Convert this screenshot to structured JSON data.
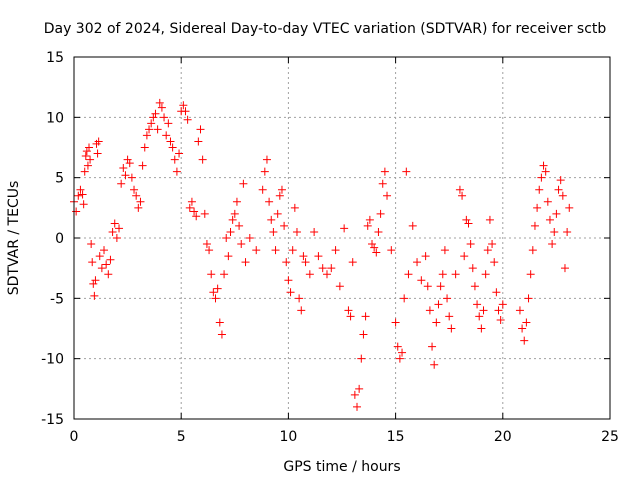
{
  "chart_data": {
    "type": "scatter",
    "title": "Day 302 of 2024, Sidereal Day-to-day VTEC variation (SDTVAR) for receiver sctb",
    "xlabel": "GPS time / hours",
    "ylabel": "SDTVAR / TECUs",
    "xlim": [
      0,
      25
    ],
    "ylim": [
      -15,
      15
    ],
    "xticks": [
      0,
      5,
      10,
      15,
      20,
      25
    ],
    "yticks": [
      -15,
      -10,
      -5,
      0,
      5,
      10,
      15
    ],
    "grid": true,
    "marker": "+",
    "color": "#ff0000",
    "series": [
      {
        "name": "SDTVAR",
        "points": [
          [
            0.0,
            3.0
          ],
          [
            0.1,
            2.2
          ],
          [
            0.2,
            3.5
          ],
          [
            0.3,
            4.0
          ],
          [
            0.4,
            3.6
          ],
          [
            0.45,
            2.8
          ],
          [
            0.5,
            5.5
          ],
          [
            0.55,
            6.8
          ],
          [
            0.6,
            7.2
          ],
          [
            0.65,
            6.0
          ],
          [
            0.7,
            7.5
          ],
          [
            0.75,
            6.5
          ],
          [
            0.8,
            -0.5
          ],
          [
            0.85,
            -2.0
          ],
          [
            0.9,
            -3.8
          ],
          [
            0.95,
            -4.8
          ],
          [
            1.0,
            -3.5
          ],
          [
            1.05,
            7.8
          ],
          [
            1.1,
            7.0
          ],
          [
            1.15,
            8.0
          ],
          [
            1.2,
            -1.5
          ],
          [
            1.3,
            -2.5
          ],
          [
            1.4,
            -1.0
          ],
          [
            1.5,
            -2.2
          ],
          [
            1.6,
            -3.0
          ],
          [
            1.7,
            -1.8
          ],
          [
            1.8,
            0.5
          ],
          [
            1.9,
            1.2
          ],
          [
            2.0,
            0.0
          ],
          [
            2.1,
            0.8
          ],
          [
            2.2,
            4.5
          ],
          [
            2.3,
            5.8
          ],
          [
            2.4,
            5.2
          ],
          [
            2.5,
            6.5
          ],
          [
            2.6,
            6.2
          ],
          [
            2.7,
            5.0
          ],
          [
            2.8,
            4.0
          ],
          [
            2.9,
            3.5
          ],
          [
            3.0,
            2.5
          ],
          [
            3.1,
            3.0
          ],
          [
            3.2,
            6.0
          ],
          [
            3.3,
            7.5
          ],
          [
            3.4,
            8.5
          ],
          [
            3.5,
            9.0
          ],
          [
            3.6,
            9.5
          ],
          [
            3.7,
            10.0
          ],
          [
            3.8,
            10.3
          ],
          [
            3.9,
            9.0
          ],
          [
            4.0,
            11.2
          ],
          [
            4.1,
            10.8
          ],
          [
            4.2,
            10.0
          ],
          [
            4.3,
            8.5
          ],
          [
            4.4,
            9.5
          ],
          [
            4.5,
            8.0
          ],
          [
            4.6,
            7.5
          ],
          [
            4.7,
            6.5
          ],
          [
            4.8,
            5.5
          ],
          [
            4.9,
            7.0
          ],
          [
            5.0,
            10.5
          ],
          [
            5.1,
            11.0
          ],
          [
            5.2,
            10.5
          ],
          [
            5.3,
            9.8
          ],
          [
            5.4,
            2.5
          ],
          [
            5.5,
            3.0
          ],
          [
            5.6,
            2.2
          ],
          [
            5.7,
            1.8
          ],
          [
            5.8,
            8.0
          ],
          [
            5.9,
            9.0
          ],
          [
            6.0,
            6.5
          ],
          [
            6.1,
            2.0
          ],
          [
            6.2,
            -0.5
          ],
          [
            6.3,
            -1.0
          ],
          [
            6.4,
            -3.0
          ],
          [
            6.5,
            -4.5
          ],
          [
            6.6,
            -5.0
          ],
          [
            6.7,
            -4.2
          ],
          [
            6.8,
            -7.0
          ],
          [
            6.9,
            -8.0
          ],
          [
            7.0,
            -3.0
          ],
          [
            7.1,
            0.0
          ],
          [
            7.2,
            -1.5
          ],
          [
            7.3,
            0.5
          ],
          [
            7.4,
            1.5
          ],
          [
            7.5,
            2.0
          ],
          [
            7.6,
            3.0
          ],
          [
            7.7,
            1.0
          ],
          [
            7.8,
            -0.5
          ],
          [
            7.9,
            4.5
          ],
          [
            8.0,
            -2.0
          ],
          [
            8.2,
            0.0
          ],
          [
            8.5,
            -1.0
          ],
          [
            8.8,
            4.0
          ],
          [
            8.9,
            5.5
          ],
          [
            9.0,
            6.5
          ],
          [
            9.1,
            3.0
          ],
          [
            9.2,
            1.5
          ],
          [
            9.3,
            0.5
          ],
          [
            9.4,
            -1.0
          ],
          [
            9.5,
            2.0
          ],
          [
            9.6,
            3.5
          ],
          [
            9.7,
            4.0
          ],
          [
            9.8,
            1.0
          ],
          [
            9.9,
            -2.0
          ],
          [
            10.0,
            -3.5
          ],
          [
            10.1,
            -4.5
          ],
          [
            10.2,
            -1.0
          ],
          [
            10.3,
            2.5
          ],
          [
            10.4,
            0.5
          ],
          [
            10.5,
            -5.0
          ],
          [
            10.6,
            -6.0
          ],
          [
            10.7,
            -1.5
          ],
          [
            10.8,
            -2.0
          ],
          [
            11.0,
            -3.0
          ],
          [
            11.2,
            0.5
          ],
          [
            11.4,
            -1.5
          ],
          [
            11.6,
            -2.5
          ],
          [
            11.8,
            -3.0
          ],
          [
            12.0,
            -2.5
          ],
          [
            12.2,
            -1.0
          ],
          [
            12.4,
            -4.0
          ],
          [
            12.6,
            0.8
          ],
          [
            12.8,
            -6.0
          ],
          [
            12.9,
            -6.5
          ],
          [
            13.0,
            -2.0
          ],
          [
            13.1,
            -13.0
          ],
          [
            13.2,
            -14.0
          ],
          [
            13.3,
            -12.5
          ],
          [
            13.4,
            -10.0
          ],
          [
            13.5,
            -8.0
          ],
          [
            13.6,
            -6.5
          ],
          [
            13.7,
            1.0
          ],
          [
            13.8,
            1.5
          ],
          [
            13.9,
            -0.5
          ],
          [
            14.0,
            -0.8
          ],
          [
            14.1,
            -1.2
          ],
          [
            14.2,
            0.5
          ],
          [
            14.3,
            2.0
          ],
          [
            14.4,
            4.5
          ],
          [
            14.5,
            5.5
          ],
          [
            14.6,
            3.5
          ],
          [
            14.8,
            -1.0
          ],
          [
            15.0,
            -7.0
          ],
          [
            15.1,
            -9.0
          ],
          [
            15.2,
            -10.0
          ],
          [
            15.3,
            -9.5
          ],
          [
            15.4,
            -5.0
          ],
          [
            15.5,
            5.5
          ],
          [
            15.6,
            -3.0
          ],
          [
            15.8,
            1.0
          ],
          [
            16.0,
            -2.0
          ],
          [
            16.2,
            -3.5
          ],
          [
            16.4,
            -1.5
          ],
          [
            16.5,
            -4.0
          ],
          [
            16.6,
            -6.0
          ],
          [
            16.7,
            -9.0
          ],
          [
            16.8,
            -10.5
          ],
          [
            16.9,
            -7.0
          ],
          [
            17.0,
            -5.5
          ],
          [
            17.1,
            -4.0
          ],
          [
            17.2,
            -3.0
          ],
          [
            17.3,
            -1.0
          ],
          [
            17.4,
            -5.0
          ],
          [
            17.5,
            -6.5
          ],
          [
            17.6,
            -7.5
          ],
          [
            17.8,
            -3.0
          ],
          [
            18.0,
            4.0
          ],
          [
            18.1,
            3.5
          ],
          [
            18.2,
            -1.5
          ],
          [
            18.3,
            1.5
          ],
          [
            18.4,
            1.2
          ],
          [
            18.5,
            -0.5
          ],
          [
            18.6,
            -2.5
          ],
          [
            18.7,
            -4.0
          ],
          [
            18.8,
            -5.5
          ],
          [
            18.9,
            -6.5
          ],
          [
            19.0,
            -7.5
          ],
          [
            19.1,
            -6.0
          ],
          [
            19.2,
            -3.0
          ],
          [
            19.3,
            -1.0
          ],
          [
            19.4,
            1.5
          ],
          [
            19.5,
            -0.5
          ],
          [
            19.6,
            -2.0
          ],
          [
            19.7,
            -4.5
          ],
          [
            19.8,
            -6.0
          ],
          [
            19.9,
            -6.8
          ],
          [
            20.0,
            -5.5
          ],
          [
            20.8,
            -6.0
          ],
          [
            20.9,
            -7.5
          ],
          [
            21.0,
            -8.5
          ],
          [
            21.1,
            -7.0
          ],
          [
            21.2,
            -5.0
          ],
          [
            21.3,
            -3.0
          ],
          [
            21.4,
            -1.0
          ],
          [
            21.5,
            1.0
          ],
          [
            21.6,
            2.5
          ],
          [
            21.7,
            4.0
          ],
          [
            21.8,
            5.0
          ],
          [
            21.9,
            6.0
          ],
          [
            22.0,
            5.5
          ],
          [
            22.1,
            3.0
          ],
          [
            22.2,
            1.5
          ],
          [
            22.3,
            -0.5
          ],
          [
            22.4,
            0.5
          ],
          [
            22.5,
            2.0
          ],
          [
            22.6,
            4.0
          ],
          [
            22.7,
            4.8
          ],
          [
            22.8,
            3.5
          ],
          [
            22.9,
            -2.5
          ],
          [
            23.0,
            0.5
          ],
          [
            23.1,
            2.5
          ]
        ]
      }
    ]
  }
}
